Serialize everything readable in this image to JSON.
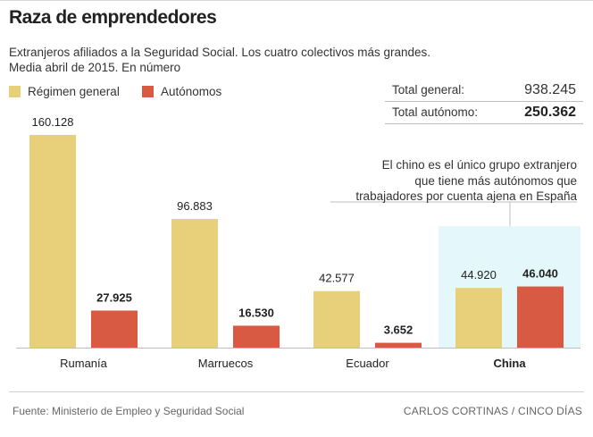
{
  "header": {
    "title": "Raza de emprendedores",
    "subtitle_line1": "Extranjeros afiliados a la Seguridad Social. Los cuatro colectivos más grandes.",
    "subtitle_line2": "Media abril de 2015. En número"
  },
  "legend": {
    "general_label": "Régimen general",
    "autonomo_label": "Autónomos"
  },
  "totals": {
    "general_label": "Total general:",
    "general_value": "938.245",
    "autonomo_label": "Total autónomo:",
    "autonomo_value": "250.362"
  },
  "note": {
    "line1": "El chino es el único grupo extranjero",
    "line2": "que tiene más autónomos que",
    "line3": "trabajadores por cuenta ajena en España"
  },
  "footer": {
    "source": "Fuente: Ministerio de Empleo y Seguridad Social",
    "credit": "CARLOS CORTINAS / CINCO DÍAS"
  },
  "colors": {
    "general": "#e8cf7a",
    "autonomo": "#d95a43",
    "highlight": "#e4f8fb",
    "axis": "#bdbdbd"
  },
  "chart_data": {
    "type": "bar",
    "title": "Raza de emprendedores",
    "categories": [
      "Rumanía",
      "Marruecos",
      "Ecuador",
      "China"
    ],
    "highlight_category": "China",
    "series": [
      {
        "name": "Régimen general",
        "values": [
          160128,
          96883,
          42577,
          44920
        ],
        "labels": [
          "160.128",
          "96.883",
          "42.577",
          "44.920"
        ]
      },
      {
        "name": "Autónomos",
        "values": [
          27925,
          16530,
          3652,
          46040
        ],
        "labels": [
          "27.925",
          "16.530",
          "3.652",
          "46.040"
        ]
      }
    ],
    "ylim": [
      0,
      160128
    ],
    "xlabel": "",
    "ylabel": ""
  }
}
